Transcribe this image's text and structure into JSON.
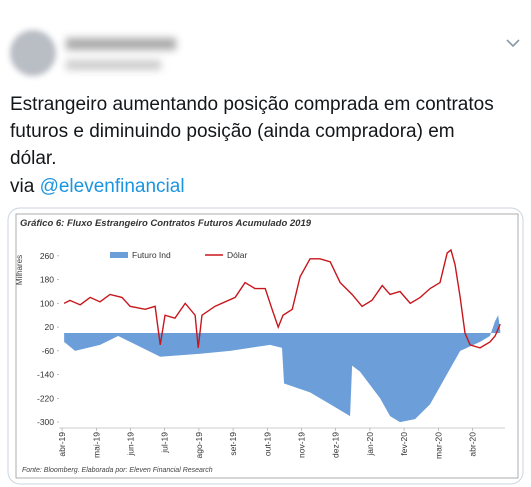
{
  "tweet": {
    "text_lines": [
      "Estrangeiro aumentando posição comprada em contratos",
      "futuros e diminuindo posição (ainda compradora) em",
      "dólar."
    ],
    "via": "via",
    "link": "@elevenfinancial"
  },
  "chart_data": {
    "type": "line",
    "title": "Gráfico 6:  Fluxo Estrangeiro Contratos Futuros Acumulado 2019",
    "y_label": "Milhares",
    "source": "Fonte: Bloomberg. Elaborada por: Eleven Financial Research",
    "xlim": [
      -0.09,
      12.95
    ],
    "xticks": [
      {
        "value": 0,
        "label": "abr-19"
      },
      {
        "value": 1,
        "label": "mai-19"
      },
      {
        "value": 2,
        "label": "jun-19"
      },
      {
        "value": 3,
        "label": "jul-19"
      },
      {
        "value": 4,
        "label": "ago-19"
      },
      {
        "value": 5,
        "label": "set-19"
      },
      {
        "value": 6,
        "label": "out-19"
      },
      {
        "value": 7,
        "label": "nov-19"
      },
      {
        "value": 8,
        "label": "dez-19"
      },
      {
        "value": 9,
        "label": "jan-20"
      },
      {
        "value": 10,
        "label": "fev-20"
      },
      {
        "value": 11,
        "label": "mar-20"
      },
      {
        "value": 12,
        "label": "abr-20"
      }
    ],
    "ylim": [
      -320,
      300
    ],
    "yticks": [
      260,
      180,
      100,
      20,
      -60,
      -140,
      -220,
      -300
    ],
    "series": [
      {
        "name": "Futuro Ind",
        "kind": "area",
        "color": "#6c9fd9",
        "x": [
          0.06,
          0.38,
          1.11,
          1.64,
          1.99,
          2.87,
          4.04,
          4.91,
          6.08,
          6.43,
          6.49,
          7.25,
          7.84,
          8.42,
          8.48,
          8.71,
          9.3,
          9.59,
          9.88,
          10.32,
          10.76,
          11.2,
          11.64,
          12.22,
          12.51,
          12.66,
          12.75,
          12.81
        ],
        "values": [
          -30,
          -60,
          -40,
          -10,
          -30,
          -80,
          -70,
          -60,
          -40,
          -50,
          -170,
          -200,
          -240,
          -280,
          -110,
          -130,
          -220,
          -280,
          -300,
          -290,
          -240,
          -150,
          -60,
          -30,
          -10,
          40,
          60,
          10
        ]
      },
      {
        "name": "Dólar",
        "kind": "line",
        "color": "#c8161d",
        "x": [
          0.06,
          0.23,
          0.53,
          0.82,
          1.11,
          1.4,
          1.75,
          1.99,
          2.43,
          2.72,
          2.87,
          3.01,
          3.3,
          3.6,
          3.89,
          3.98,
          4.09,
          4.47,
          5.06,
          5.35,
          5.64,
          5.94,
          6.14,
          6.32,
          6.46,
          6.73,
          6.96,
          7.25,
          7.54,
          7.84,
          8.13,
          8.48,
          8.77,
          9.06,
          9.36,
          9.59,
          9.88,
          10.18,
          10.47,
          10.76,
          11.05,
          11.26,
          11.37,
          11.49,
          11.64,
          11.78,
          11.93,
          12.22,
          12.51,
          12.66,
          12.81
        ],
        "values": [
          100,
          110,
          95,
          120,
          105,
          130,
          120,
          90,
          80,
          90,
          -40,
          60,
          50,
          100,
          60,
          -50,
          60,
          90,
          120,
          170,
          150,
          150,
          80,
          20,
          60,
          80,
          190,
          250,
          250,
          240,
          170,
          130,
          90,
          110,
          160,
          130,
          140,
          100,
          120,
          150,
          170,
          270,
          280,
          230,
          120,
          0,
          -40,
          -50,
          -30,
          -10,
          30
        ]
      }
    ]
  }
}
